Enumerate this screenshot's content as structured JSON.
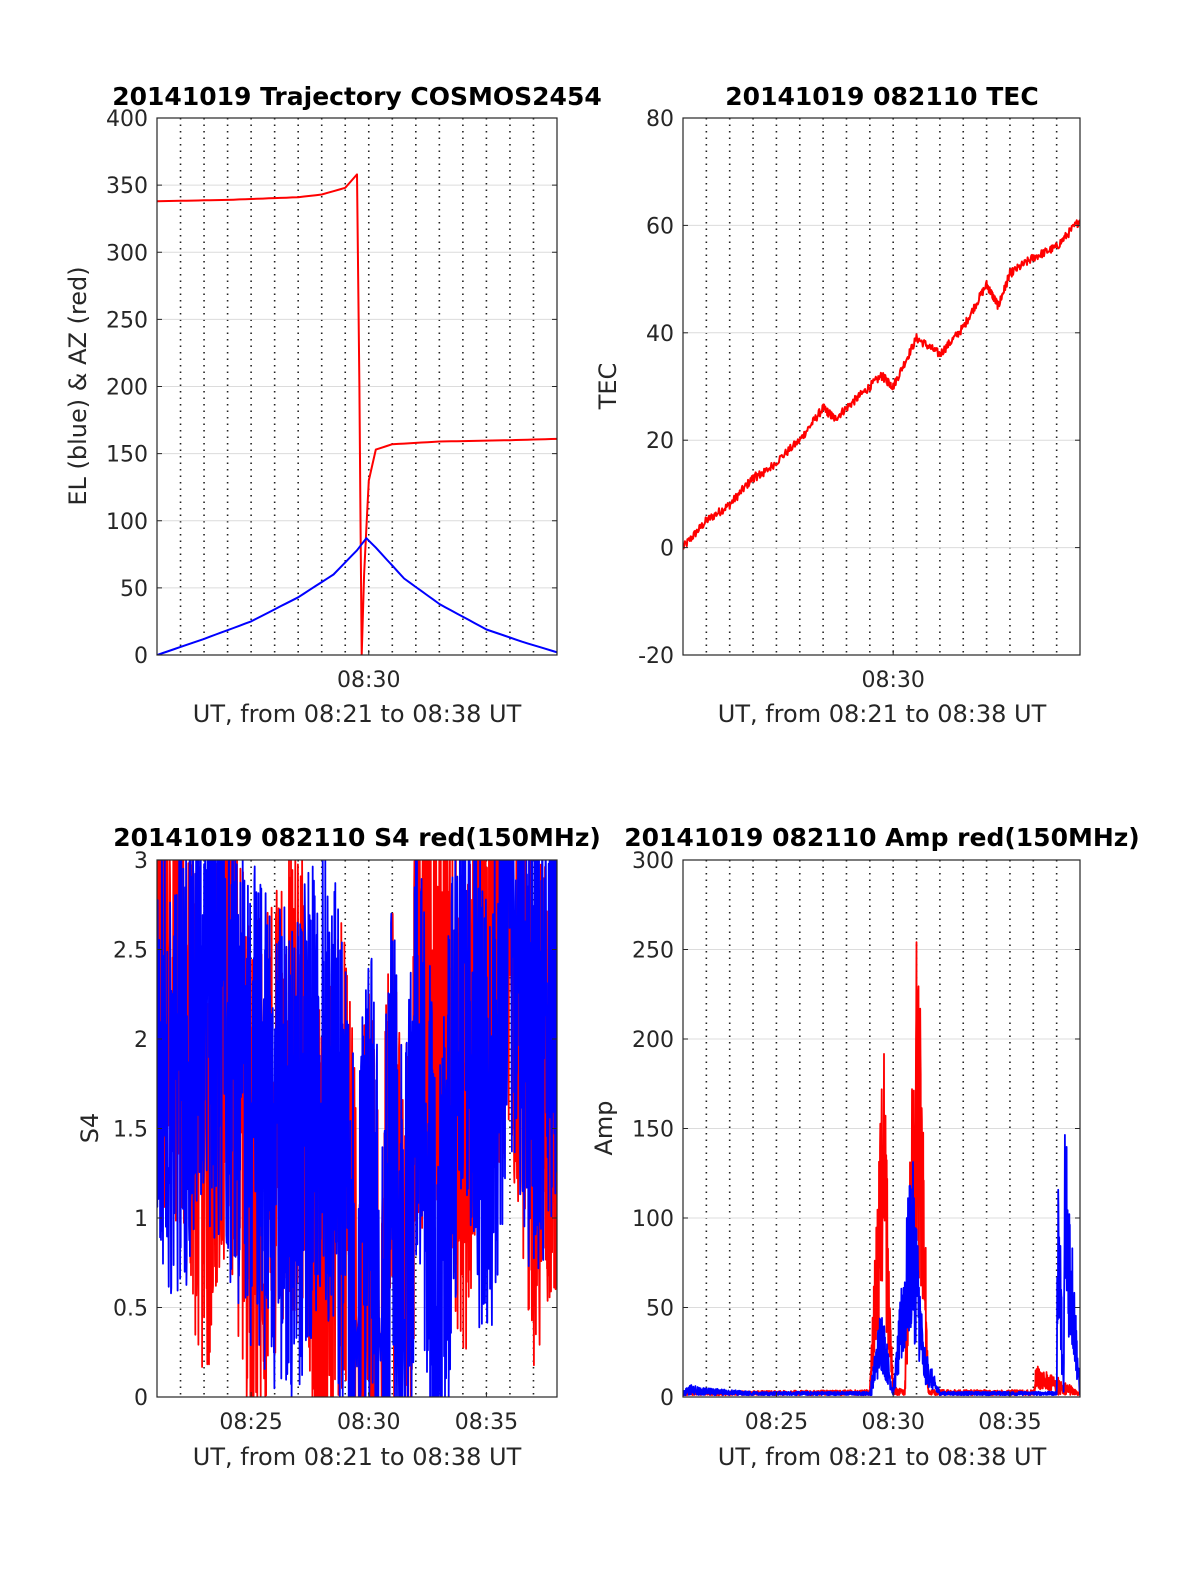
{
  "chart_data": [
    {
      "type": "line",
      "title": "20141019 Trajectory COSMOS2454",
      "xlabel": "UT, from 08:21 to 08:38 UT",
      "ylabel": "EL (blue) & AZ (red)",
      "xlim": [
        "08:21",
        "08:38"
      ],
      "ylim": [
        0,
        400
      ],
      "xticks": [
        "08:30"
      ],
      "yticks": [
        "0",
        "50",
        "100",
        "150",
        "200",
        "250",
        "300",
        "350",
        "400"
      ],
      "grid": true,
      "series": [
        {
          "color": "#ff0000",
          "x": [
            "08:21",
            "08:24",
            "08:27",
            "08:28",
            "08:29",
            "08:29.5",
            "08:29.6",
            "08:29.7",
            "08:29.8",
            "08:30",
            "08:30.3",
            "08:31",
            "08:33",
            "08:36",
            "08:38"
          ],
          "values": [
            338,
            339,
            341,
            343,
            348,
            358,
            200,
            0,
            60,
            130,
            153,
            157,
            159,
            160,
            161
          ]
        },
        {
          "color": "#0000ff",
          "x": [
            "08:21",
            "08:23",
            "08:25",
            "08:27",
            "08:28.5",
            "08:29.5",
            "08:29.9",
            "08:30.3",
            "08:31.5",
            "08:33",
            "08:35",
            "08:36.5",
            "08:38"
          ],
          "values": [
            0,
            12,
            25,
            43,
            60,
            78,
            87,
            80,
            57,
            38,
            19,
            10,
            2
          ]
        }
      ]
    },
    {
      "type": "line",
      "title": "20141019 082110 TEC",
      "xlabel": "UT, from 08:21 to 08:38 UT",
      "ylabel": "TEC",
      "xlim": [
        "08:21",
        "08:38"
      ],
      "ylim": [
        -20,
        80
      ],
      "xticks": [
        "08:30"
      ],
      "yticks": [
        "-20",
        "0",
        "20",
        "40",
        "60",
        "80"
      ],
      "grid": true,
      "series": [
        {
          "color": "#ff0000",
          "x": [
            "08:21",
            "08:22",
            "08:23",
            "08:24",
            "08:24.5",
            "08:26",
            "08:27",
            "08:27.5",
            "08:28.5",
            "08:29.5",
            "08:30",
            "08:31",
            "08:32",
            "08:33",
            "08:34",
            "08:34.5",
            "08:35",
            "08:36",
            "08:37",
            "08:38"
          ],
          "values": [
            0,
            5,
            8,
            13,
            14,
            20,
            26,
            24,
            28,
            32,
            30,
            39,
            36,
            41,
            49,
            45,
            51,
            54,
            56,
            61
          ]
        }
      ]
    },
    {
      "type": "line",
      "title": "20141019 082110 S4 red(150MHz)",
      "xlabel": "UT, from 08:21 to 08:38 UT",
      "ylabel": "S4",
      "xlim": [
        "08:21",
        "08:38"
      ],
      "ylim": [
        0,
        3
      ],
      "xticks": [
        "08:25",
        "08:30",
        "08:35"
      ],
      "yticks": [
        "0",
        "0.5",
        "1",
        "1.5",
        "2",
        "2.5",
        "3"
      ],
      "grid": true,
      "series": [
        {
          "color": "#ff0000",
          "x": [
            "08:21",
            "08:22",
            "08:23",
            "08:24",
            "08:25",
            "08:26",
            "08:27",
            "08:28",
            "08:29",
            "08:29.5",
            "08:30",
            "08:30.5",
            "08:31",
            "08:31.5",
            "08:32",
            "08:33",
            "08:34",
            "08:35",
            "08:36",
            "08:37",
            "08:38"
          ],
          "values": [
            2.5,
            2.2,
            1.4,
            2.2,
            1.2,
            1.5,
            1.8,
            0.8,
            1.4,
            0.3,
            1.0,
            0.3,
            1.5,
            0.3,
            2.0,
            2.5,
            1.5,
            2.5,
            2.8,
            1.5,
            2.0
          ]
        },
        {
          "color": "#0000ff",
          "x": [
            "08:21",
            "08:22",
            "08:23",
            "08:24",
            "08:25",
            "08:26",
            "08:27",
            "08:28",
            "08:29",
            "08:29.5",
            "08:30",
            "08:30.5",
            "08:31",
            "08:31.5",
            "08:32",
            "08:33",
            "08:34",
            "08:35",
            "08:36",
            "08:37",
            "08:38"
          ],
          "values": [
            2.2,
            1.8,
            2.4,
            2.1,
            1.6,
            1.4,
            1.3,
            2.0,
            1.1,
            0.25,
            1.4,
            0.25,
            1.5,
            0.35,
            1.9,
            0.5,
            2.6,
            1.4,
            2.8,
            1.9,
            2.5
          ]
        }
      ]
    },
    {
      "type": "line",
      "title": "20141019 082110 Amp red(150MHz)",
      "xlabel": "UT, from 08:21 to 08:38 UT",
      "ylabel": "Amp",
      "xlim": [
        "08:21",
        "08:38"
      ],
      "ylim": [
        0,
        300
      ],
      "xticks": [
        "08:25",
        "08:30",
        "08:35"
      ],
      "yticks": [
        "0",
        "50",
        "100",
        "150",
        "200",
        "250",
        "300"
      ],
      "grid": true,
      "series": [
        {
          "color": "#ff0000",
          "x": [
            "08:21",
            "08:29",
            "08:29.3",
            "08:29.6",
            "08:29.8",
            "08:30",
            "08:30.5",
            "08:30.8",
            "08:31",
            "08:31.2",
            "08:31.5",
            "08:36",
            "08:36.1",
            "08:38"
          ],
          "values": [
            2,
            3,
            110,
            205,
            90,
            5,
            3,
            180,
            275,
            230,
            3,
            3,
            18,
            2
          ]
        },
        {
          "color": "#0000ff",
          "x": [
            "08:21",
            "08:21.3",
            "08:22",
            "08:24",
            "08:29",
            "08:29.5",
            "08:30",
            "08:30.8",
            "08:31",
            "08:31.3",
            "08:32",
            "08:37",
            "08:37.05",
            "08:37.3",
            "08:37.35",
            "08:38"
          ],
          "values": [
            2,
            6,
            4,
            2,
            2,
            55,
            3,
            140,
            105,
            30,
            2,
            2,
            163,
            2,
            175,
            2
          ]
        }
      ]
    }
  ]
}
